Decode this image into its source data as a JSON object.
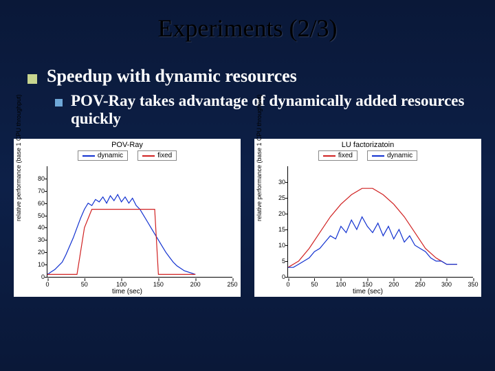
{
  "slide": {
    "title": "Experiments (2/3)",
    "bullet1": "Speedup with dynamic resources",
    "bullet2": "POV-Ray takes advantage of dynamically added resources quickly",
    "bullet1_marker_color": "#c7d58f",
    "bullet2_marker_color": "#6fa8d8",
    "background_gradient": [
      "#0a1838",
      "#0d2048",
      "#0a1838"
    ]
  },
  "chart_left": {
    "type": "line",
    "title": "POV-Ray",
    "xlabel": "time (sec)",
    "ylabel": "relative performance (base 1 CPU throughput)",
    "xlim": [
      0,
      250
    ],
    "ylim": [
      0,
      90
    ],
    "xticks": [
      0,
      50,
      100,
      150,
      200,
      250
    ],
    "yticks": [
      0,
      10,
      20,
      30,
      40,
      50,
      60,
      70,
      80
    ],
    "background_color": "#ffffff",
    "axis_color": "#000000",
    "title_fontsize": 11,
    "label_fontsize": 10,
    "tick_fontsize": 9,
    "line_width": 1.2,
    "legend": [
      {
        "label": "dynamic",
        "color": "#1030d0"
      },
      {
        "label": "fixed",
        "color": "#d02020"
      }
    ],
    "series": [
      {
        "name": "dynamic",
        "color": "#1030d0",
        "x": [
          0,
          5,
          10,
          15,
          20,
          25,
          30,
          35,
          40,
          45,
          50,
          55,
          60,
          65,
          70,
          75,
          80,
          85,
          90,
          95,
          100,
          105,
          110,
          115,
          120,
          125,
          130,
          135,
          140,
          145,
          150,
          155,
          160,
          165,
          170,
          175,
          180,
          185,
          190,
          195,
          200
        ],
        "y": [
          2,
          4,
          6,
          9,
          12,
          18,
          25,
          32,
          40,
          48,
          55,
          60,
          58,
          63,
          61,
          65,
          60,
          66,
          62,
          67,
          61,
          65,
          60,
          64,
          58,
          55,
          50,
          45,
          40,
          35,
          30,
          25,
          20,
          16,
          12,
          9,
          7,
          5,
          4,
          3,
          2
        ]
      },
      {
        "name": "fixed",
        "color": "#d02020",
        "x": [
          0,
          40,
          50,
          60,
          145,
          150,
          200
        ],
        "y": [
          2,
          2,
          40,
          55,
          55,
          2,
          2
        ]
      }
    ]
  },
  "chart_right": {
    "type": "line",
    "title": "LU factorizatoin",
    "xlabel": "time (sec)",
    "ylabel": "relative performance (base 1 CPU throughput)",
    "xlim": [
      0,
      350
    ],
    "ylim": [
      0,
      35
    ],
    "xticks": [
      0,
      50,
      100,
      150,
      200,
      250,
      300,
      350
    ],
    "yticks": [
      0,
      5,
      10,
      15,
      20,
      25,
      30
    ],
    "background_color": "#ffffff",
    "axis_color": "#000000",
    "title_fontsize": 11,
    "label_fontsize": 10,
    "tick_fontsize": 9,
    "line_width": 1.2,
    "legend": [
      {
        "label": "fixed",
        "color": "#d02020"
      },
      {
        "label": "dynamic",
        "color": "#1030d0"
      }
    ],
    "series": [
      {
        "name": "fixed",
        "color": "#d02020",
        "x": [
          0,
          20,
          40,
          60,
          80,
          100,
          120,
          140,
          160,
          180,
          200,
          220,
          240,
          260,
          280,
          300,
          310,
          320
        ],
        "y": [
          3,
          5,
          9,
          14,
          19,
          23,
          26,
          28,
          28,
          26,
          23,
          19,
          14,
          9,
          6,
          4,
          4,
          4
        ]
      },
      {
        "name": "dynamic",
        "color": "#1030d0",
        "x": [
          0,
          10,
          20,
          30,
          40,
          50,
          60,
          70,
          80,
          90,
          100,
          110,
          120,
          130,
          140,
          150,
          160,
          170,
          180,
          190,
          200,
          210,
          220,
          230,
          240,
          250,
          260,
          270,
          280,
          290,
          300,
          310,
          320
        ],
        "y": [
          3,
          3,
          4,
          5,
          6,
          8,
          9,
          11,
          13,
          12,
          16,
          14,
          18,
          15,
          19,
          16,
          14,
          17,
          13,
          16,
          12,
          15,
          11,
          13,
          10,
          9,
          8,
          6,
          5,
          5,
          4,
          4,
          4
        ]
      }
    ]
  }
}
